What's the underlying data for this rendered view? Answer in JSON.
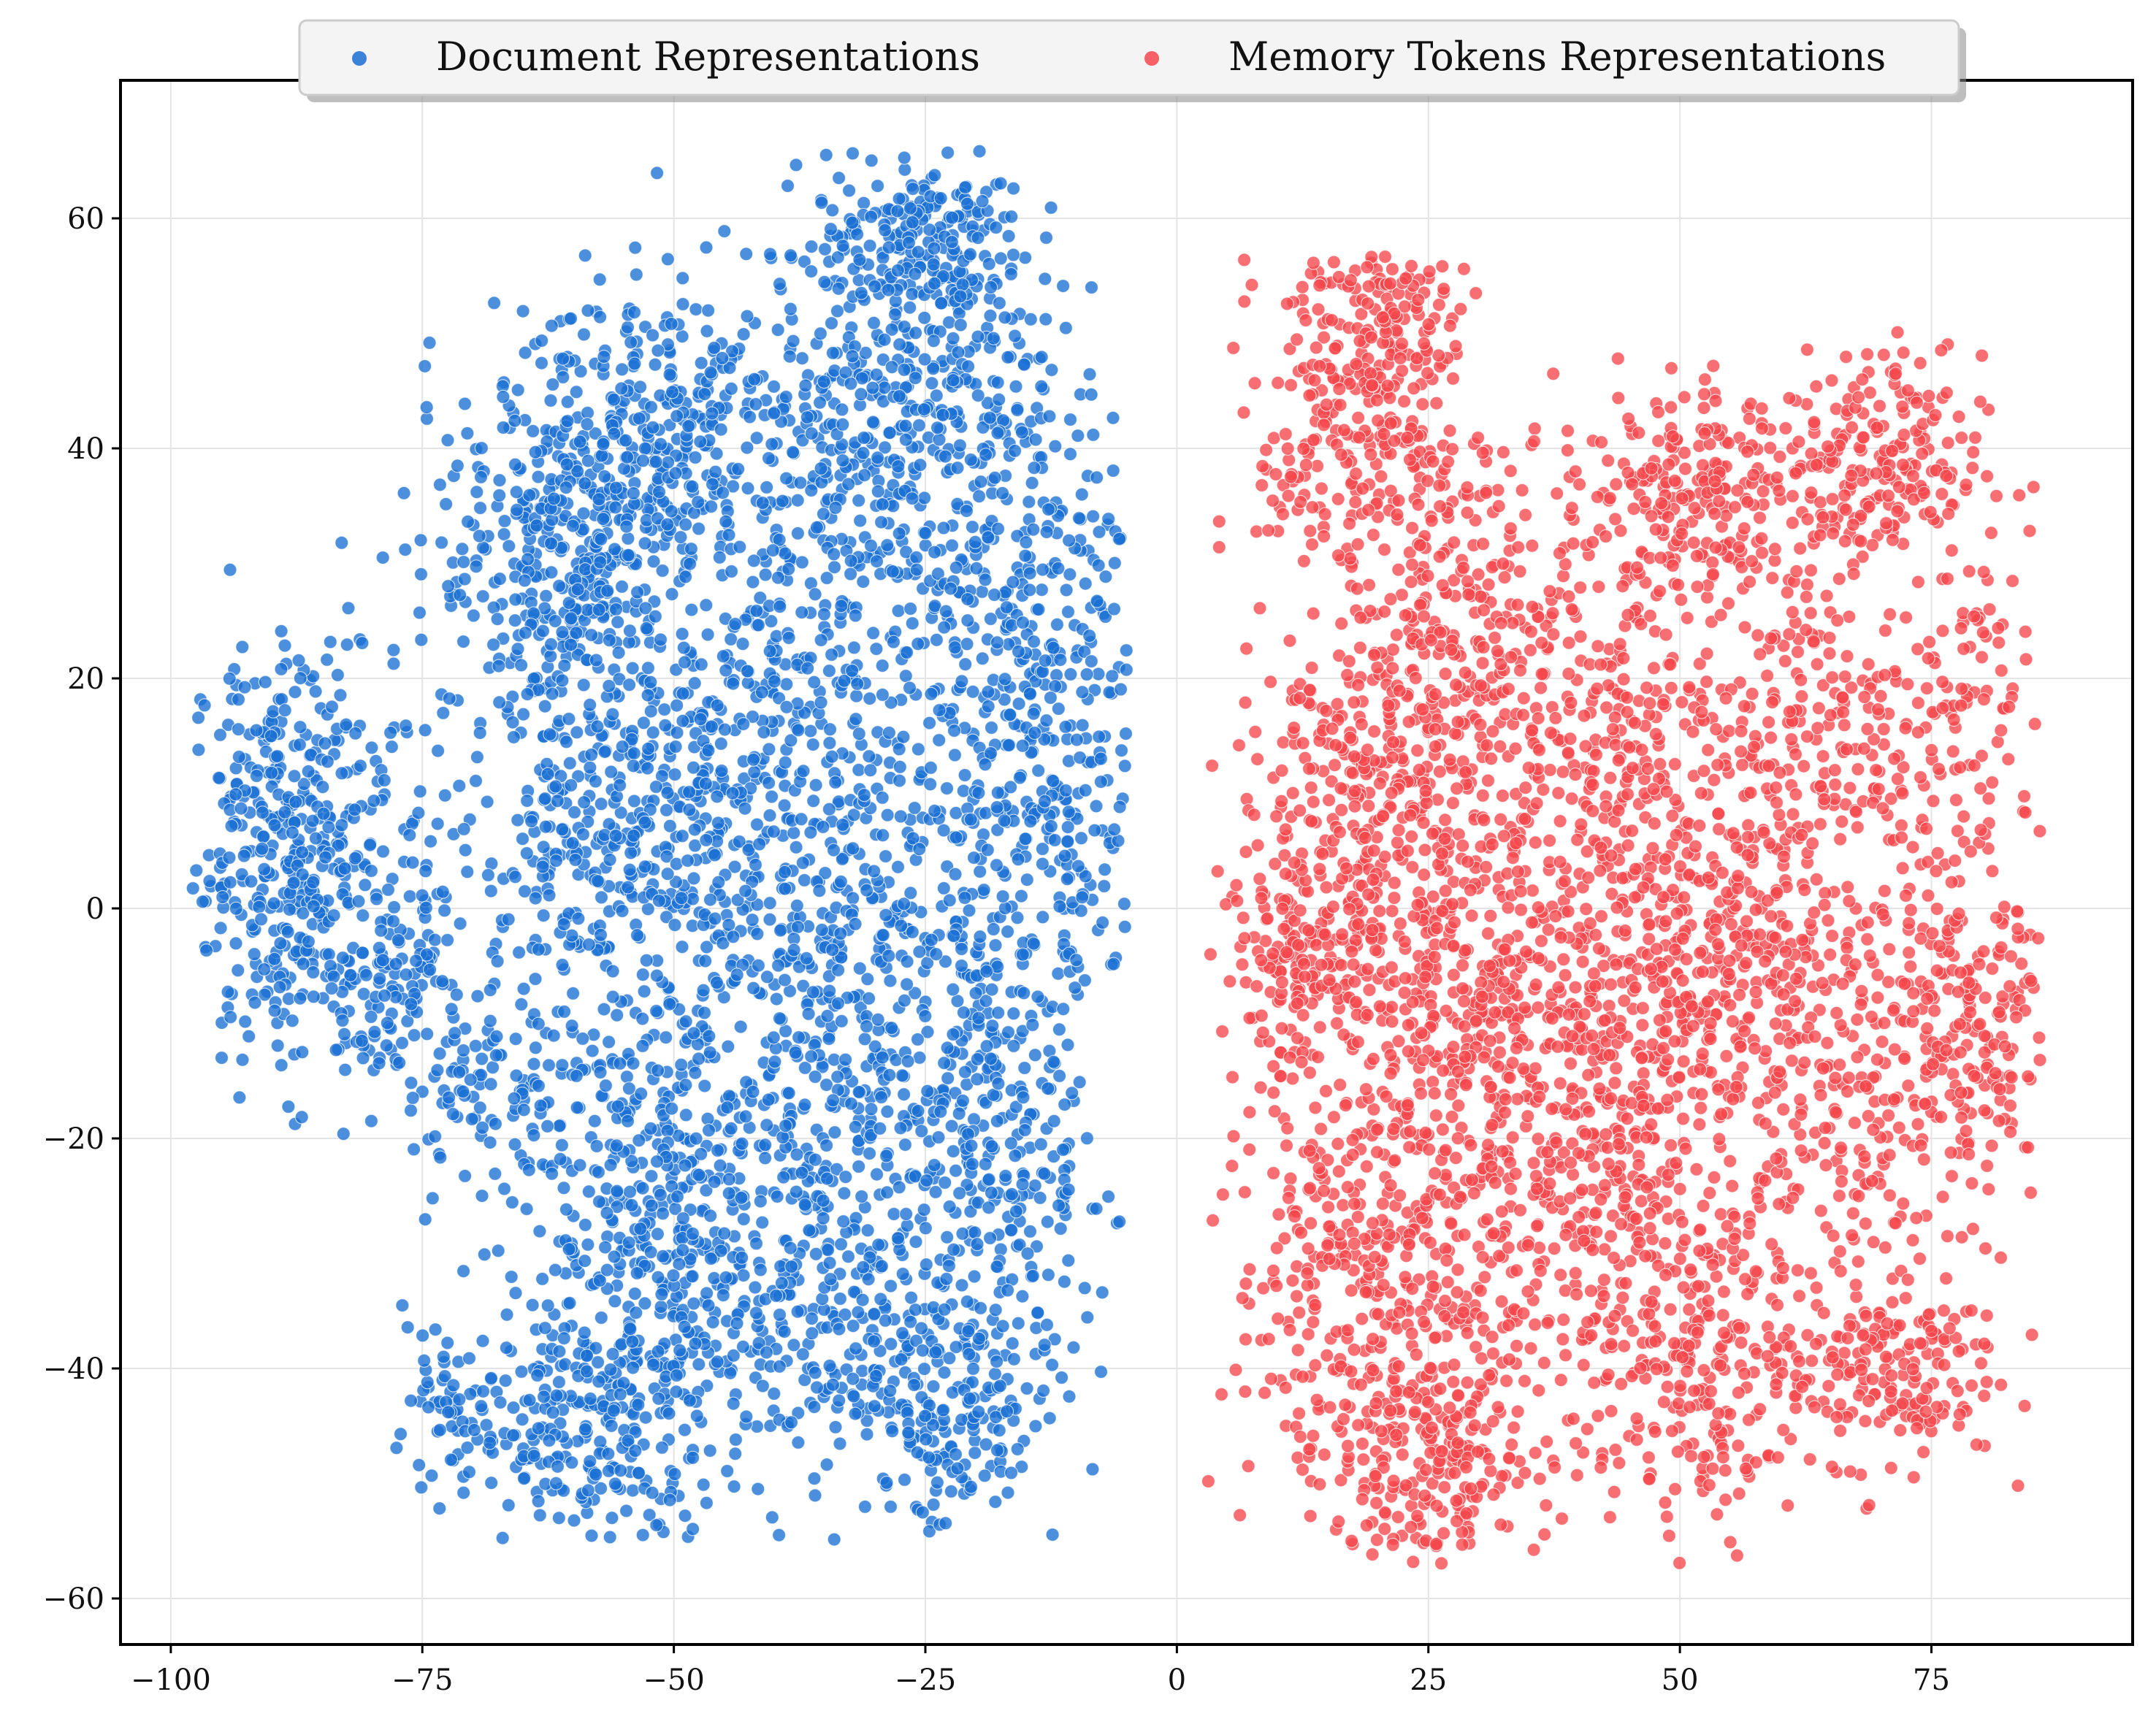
{
  "chart_data": {
    "type": "scatter",
    "title": "",
    "xlabel": "",
    "ylabel": "",
    "xlim": [
      -105,
      95
    ],
    "ylim": [
      -64,
      72
    ],
    "xticks": [
      -100,
      -75,
      -50,
      -25,
      0,
      25,
      50,
      75
    ],
    "yticks": [
      -60,
      -40,
      -20,
      0,
      20,
      40,
      60
    ],
    "xtick_labels": [
      "−100",
      "−75",
      "−50",
      "−25",
      "0",
      "25",
      "50",
      "75"
    ],
    "ytick_labels": [
      "−60",
      "−40",
      "−20",
      "0",
      "20",
      "40",
      "60"
    ],
    "grid": true,
    "legend_position": "top-center",
    "series": [
      {
        "name": "Document Representations",
        "color": "#1a6fd4",
        "points_estimated": 4600,
        "x_range": [
          -98,
          -5
        ],
        "y_range": [
          -55,
          66
        ],
        "clusters": [
          {
            "cx": -88,
            "cy": 5,
            "sx": 5,
            "sy": 9,
            "n": 420
          },
          {
            "cx": -78,
            "cy": -5,
            "sx": 4,
            "sy": 6,
            "n": 120
          },
          {
            "cx": -70,
            "cy": -15,
            "sx": 4,
            "sy": 4,
            "n": 80
          },
          {
            "cx": -72,
            "cy": -45,
            "sx": 3,
            "sy": 3,
            "n": 60
          },
          {
            "cx": -60,
            "cy": 30,
            "sx": 7,
            "sy": 8,
            "n": 420
          },
          {
            "cx": -55,
            "cy": 5,
            "sx": 8,
            "sy": 8,
            "n": 380
          },
          {
            "cx": -50,
            "cy": 42,
            "sx": 8,
            "sy": 6,
            "n": 300
          },
          {
            "cx": -52,
            "cy": -25,
            "sx": 8,
            "sy": 10,
            "n": 460
          },
          {
            "cx": -58,
            "cy": -45,
            "sx": 6,
            "sy": 6,
            "n": 240
          },
          {
            "cx": -38,
            "cy": 20,
            "sx": 8,
            "sy": 9,
            "n": 320
          },
          {
            "cx": -32,
            "cy": -5,
            "sx": 9,
            "sy": 10,
            "n": 420
          },
          {
            "cx": -35,
            "cy": -35,
            "sx": 8,
            "sy": 9,
            "n": 320
          },
          {
            "cx": -28,
            "cy": 45,
            "sx": 7,
            "sy": 9,
            "n": 380
          },
          {
            "cx": -25,
            "cy": 58,
            "sx": 5,
            "sy": 4,
            "n": 180
          },
          {
            "cx": -15,
            "cy": 28,
            "sx": 6,
            "sy": 10,
            "n": 280
          },
          {
            "cx": -12,
            "cy": 5,
            "sx": 5,
            "sy": 8,
            "n": 200
          },
          {
            "cx": -18,
            "cy": -22,
            "sx": 6,
            "sy": 9,
            "n": 260
          },
          {
            "cx": -22,
            "cy": -45,
            "sx": 5,
            "sy": 5,
            "n": 160
          }
        ]
      },
      {
        "name": "Memory Tokens Representations",
        "color": "#f5474c",
        "points_estimated": 4600,
        "x_range": [
          3,
          86
        ],
        "y_range": [
          -57,
          57
        ],
        "clusters": [
          {
            "cx": 18,
            "cy": 42,
            "sx": 5,
            "sy": 9,
            "n": 300
          },
          {
            "cx": 22,
            "cy": 52,
            "sx": 3,
            "sy": 3,
            "n": 80
          },
          {
            "cx": 30,
            "cy": 25,
            "sx": 5,
            "sy": 8,
            "n": 220
          },
          {
            "cx": 18,
            "cy": 10,
            "sx": 6,
            "sy": 8,
            "n": 280
          },
          {
            "cx": 12,
            "cy": -5,
            "sx": 4,
            "sy": 4,
            "n": 140
          },
          {
            "cx": 30,
            "cy": -5,
            "sx": 8,
            "sy": 8,
            "n": 360
          },
          {
            "cx": 22,
            "cy": -30,
            "sx": 9,
            "sy": 10,
            "n": 480
          },
          {
            "cx": 25,
            "cy": -48,
            "sx": 6,
            "sy": 5,
            "n": 220
          },
          {
            "cx": 42,
            "cy": 15,
            "sx": 6,
            "sy": 7,
            "n": 200
          },
          {
            "cx": 45,
            "cy": -20,
            "sx": 8,
            "sy": 10,
            "n": 380
          },
          {
            "cx": 50,
            "cy": 35,
            "sx": 6,
            "sy": 5,
            "n": 220
          },
          {
            "cx": 52,
            "cy": -2,
            "sx": 6,
            "sy": 7,
            "n": 260
          },
          {
            "cx": 52,
            "cy": -40,
            "sx": 7,
            "sy": 7,
            "n": 240
          },
          {
            "cx": 68,
            "cy": 38,
            "sx": 6,
            "sy": 5,
            "n": 240
          },
          {
            "cx": 65,
            "cy": 15,
            "sx": 7,
            "sy": 8,
            "n": 220
          },
          {
            "cx": 68,
            "cy": -15,
            "sx": 8,
            "sy": 9,
            "n": 300
          },
          {
            "cx": 70,
            "cy": -40,
            "sx": 6,
            "sy": 4,
            "n": 180
          },
          {
            "cx": 80,
            "cy": -5,
            "sx": 4,
            "sy": 8,
            "n": 160
          },
          {
            "cx": 78,
            "cy": 22,
            "sx": 3,
            "sy": 5,
            "n": 60
          }
        ]
      }
    ]
  }
}
